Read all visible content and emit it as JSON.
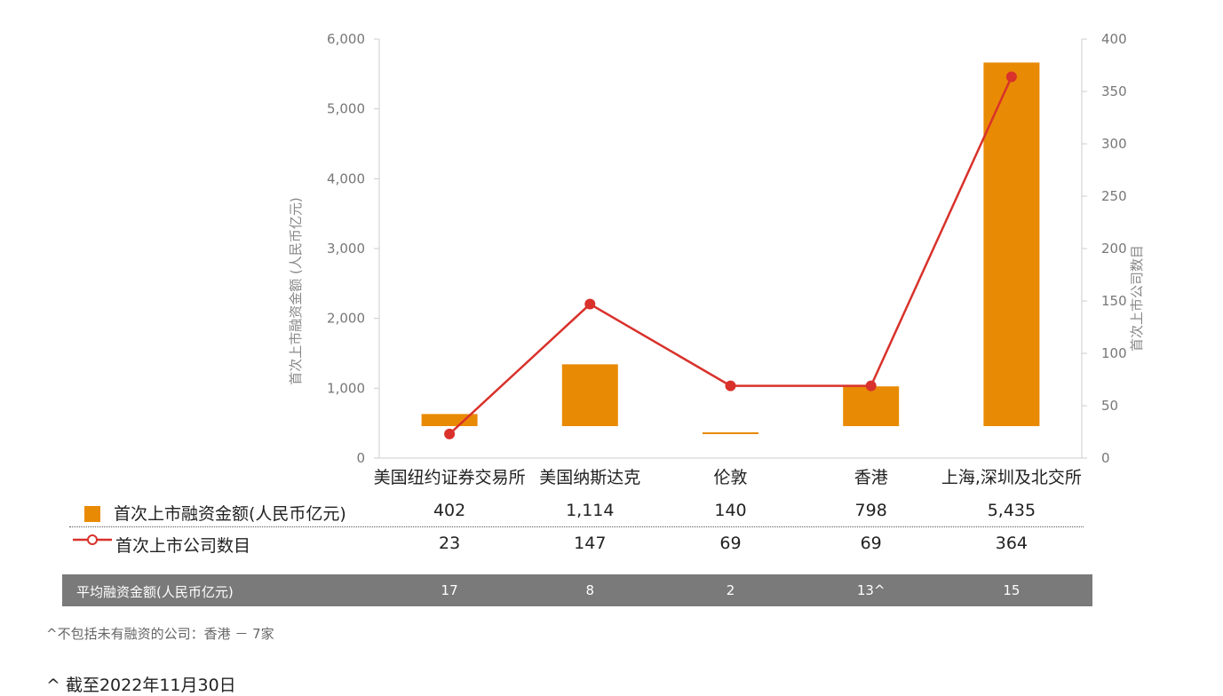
{
  "chart_data": {
    "type": "bar",
    "categories": [
      "美国纽约证券交易所",
      "美国纳斯达克",
      "伦敦",
      "香港",
      "上海,深圳及北交所"
    ],
    "series": [
      {
        "name": "首次上市融资金额(人民币亿元)",
        "type": "bar",
        "axis": "left",
        "values": [
          402,
          1114,
          140,
          798,
          5435
        ],
        "color": "#e98a05"
      },
      {
        "name": "首次上市公司数目",
        "type": "line",
        "axis": "right",
        "values": [
          23,
          147,
          69,
          69,
          364
        ],
        "color": "#d9312b"
      }
    ],
    "ylabel": "首次上市融资金额 (人民币亿元)",
    "y2label": "首次上市公司数目",
    "ylim": [
      0,
      6000
    ],
    "y2lim": [
      0,
      400
    ],
    "yticks": [
      "0",
      "1,000",
      "2,000",
      "3,000",
      "4,000",
      "5,000",
      "6,000"
    ],
    "y2ticks": [
      "0",
      "50",
      "100",
      "150",
      "200",
      "250",
      "300",
      "350",
      "400"
    ],
    "grid": false
  },
  "table": {
    "amount_label": "首次上市融资金额(人民币亿元)",
    "amount_values": [
      "402",
      "1,114",
      "140",
      "798",
      "5,435"
    ],
    "count_label": "首次上市公司数目",
    "count_values": [
      "23",
      "147",
      "69",
      "69",
      "364"
    ],
    "avg_label": "平均融资金额(人民币亿元)",
    "avg_values": [
      "17",
      "8",
      "2",
      "13^",
      "15"
    ]
  },
  "notes": {
    "footnote": "^不包括未有融资的公司：香港 － 7家",
    "as_of": "^ 截至2022年11月30日"
  }
}
